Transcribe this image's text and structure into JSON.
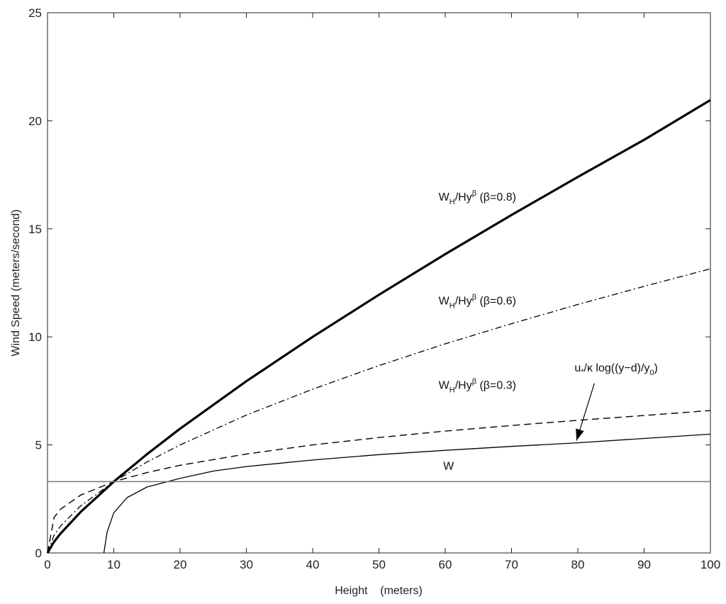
{
  "chart_data": {
    "type": "line",
    "xlabel": "Height    (meters)",
    "ylabel": "Wind Speed (meters/second)",
    "xlim": [
      0,
      100
    ],
    "ylim": [
      0,
      25
    ],
    "xticks": [
      0,
      10,
      20,
      30,
      40,
      50,
      60,
      70,
      80,
      90,
      100
    ],
    "yticks": [
      0,
      5,
      10,
      15,
      20,
      25
    ],
    "grid": false,
    "legend": "none",
    "series": [
      {
        "id": "beta08",
        "style": "thick-solid",
        "x": [
          0,
          1,
          2,
          5,
          10,
          15,
          20,
          30,
          40,
          50,
          60,
          70,
          80,
          90,
          100
        ],
        "y": [
          0,
          0.52,
          0.91,
          1.9,
          3.3,
          4.57,
          5.75,
          7.95,
          10.0,
          11.95,
          13.83,
          15.64,
          17.4,
          19.12,
          20.96
        ]
      },
      {
        "id": "beta06",
        "style": "dash-dot",
        "x": [
          0,
          1,
          2,
          5,
          10,
          15,
          20,
          30,
          40,
          50,
          60,
          70,
          80,
          90,
          100
        ],
        "y": [
          0,
          0.83,
          1.26,
          2.18,
          3.3,
          4.21,
          5.0,
          6.38,
          7.58,
          8.67,
          9.68,
          10.61,
          11.5,
          12.34,
          13.15
        ]
      },
      {
        "id": "beta03",
        "style": "dashed",
        "x": [
          0,
          1,
          2,
          5,
          10,
          15,
          20,
          30,
          40,
          50,
          60,
          70,
          80,
          90,
          100
        ],
        "y": [
          0,
          1.65,
          2.03,
          2.68,
          3.3,
          3.72,
          4.06,
          4.58,
          5.0,
          5.34,
          5.64,
          5.9,
          6.14,
          6.36,
          6.59
        ]
      },
      {
        "id": "log",
        "style": "thin-solid",
        "x": [
          8.5,
          9,
          10,
          12,
          15,
          20,
          25,
          30,
          40,
          50,
          60,
          70,
          80,
          90,
          100
        ],
        "y": [
          0,
          0.97,
          1.86,
          2.56,
          3.05,
          3.45,
          3.79,
          4.0,
          4.3,
          4.55,
          4.75,
          4.93,
          5.1,
          5.3,
          5.5
        ]
      },
      {
        "id": "W",
        "style": "gray-solid",
        "x": [
          0,
          100
        ],
        "y": [
          3.3,
          3.3
        ]
      }
    ],
    "annotations": {
      "beta08": {
        "main": "W",
        "sub": "H",
        "mid": "/Hy",
        "sup": "β",
        "tail": "  (β=0.8)",
        "x": 59,
        "y": 16.3
      },
      "beta06": {
        "main": "W",
        "sub": "H",
        "mid": "/Hy",
        "sup": "β",
        "tail": "  (β=0.6)",
        "x": 59,
        "y": 11.5
      },
      "beta03": {
        "main": "W",
        "sub": "H",
        "mid": "/Hy",
        "sup": "β",
        "tail": "  (β=0.3)",
        "x": 59,
        "y": 7.6
      },
      "log": {
        "main": "u",
        "sub": "*",
        "mid": "/κ log((y−d)/y",
        "sub2": "0",
        "tail": ")",
        "x": 79.5,
        "y": 8.4
      },
      "W": {
        "text": "W",
        "x": 60.5,
        "y": 3.85
      }
    }
  }
}
